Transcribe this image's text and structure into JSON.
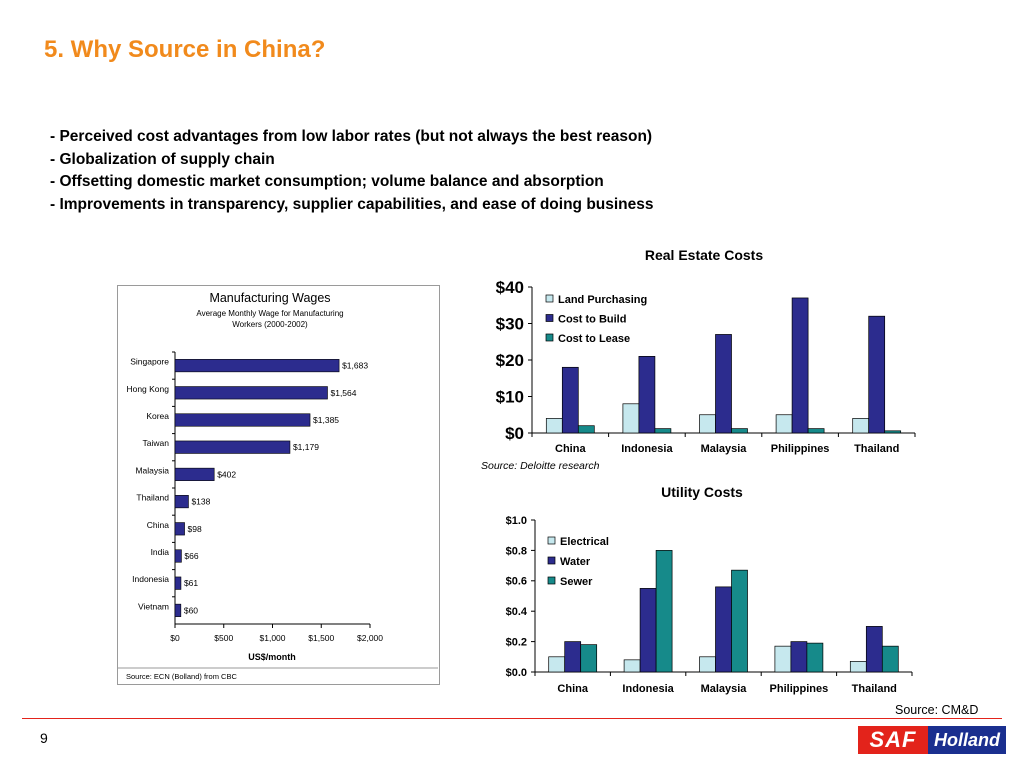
{
  "slide": {
    "title": "5.  Why Source in China?",
    "bullets": [
      "- Perceived cost advantages from low labor rates (but not always the best reason)",
      "- Globalization of supply chain",
      "- Offsetting domestic market consumption; volume balance and absorption",
      "- Improvements in transparency, supplier capabilities, and ease of doing business"
    ],
    "page_number": "9",
    "footer_source": "Source:  CM&D",
    "logo": {
      "saf": "SAF",
      "holland": "Holland"
    }
  },
  "colors": {
    "title_orange": "#f18a1c",
    "rule_red": "#e3231b",
    "light_blue": "#c6e8ee",
    "navy": "#2c2c8e",
    "teal": "#168a8a",
    "logo_blue": "#1a2f8f"
  },
  "chart_data": [
    {
      "id": "wages",
      "type": "bar",
      "orientation": "horizontal",
      "title": "Manufacturing Wages",
      "subtitle": "Average Monthly Wage for Manufacturing Workers (2000-2002)",
      "xlabel": "US$/month",
      "ylabel": "",
      "source": "Source: ECN (Bolland) from CBC",
      "categories": [
        "Singapore",
        "Hong Kong",
        "Korea",
        "Taiwan",
        "Malaysia",
        "Thailand",
        "China",
        "India",
        "Indonesia",
        "Vietnam"
      ],
      "values": [
        1683,
        1564,
        1385,
        1179,
        402,
        138,
        98,
        66,
        61,
        60
      ],
      "value_labels": [
        "$1,683",
        "$1,564",
        "$1,385",
        "$1,179",
        "$402",
        "$138",
        "$98",
        "$66",
        "$61",
        "$60"
      ],
      "xlim": [
        0,
        2000
      ],
      "xticks": [
        0,
        500,
        1000,
        1500,
        2000
      ],
      "xtick_labels": [
        "$0",
        "$500",
        "$1,000",
        "$1,500",
        "$2,000"
      ],
      "grid": false,
      "legend": "none"
    },
    {
      "id": "real_estate",
      "type": "bar",
      "title": "Real Estate Costs",
      "source": "Source: Deloitte research",
      "categories": [
        "China",
        "Indonesia",
        "Malaysia",
        "Philippines",
        "Thailand"
      ],
      "series": [
        {
          "name": "Land Purchasing",
          "values": [
            4,
            8,
            5,
            5,
            4
          ]
        },
        {
          "name": "Cost to Build",
          "values": [
            18,
            21,
            27,
            37,
            32
          ]
        },
        {
          "name": "Cost to Lease",
          "values": [
            2,
            1.2,
            1.2,
            1.2,
            0.6
          ]
        }
      ],
      "ylim": [
        0,
        40
      ],
      "yticks": [
        0,
        10,
        20,
        30,
        40
      ],
      "ytick_labels": [
        "$0",
        "$10",
        "$20",
        "$30",
        "$40"
      ],
      "xlabel": "",
      "ylabel": "",
      "grid": false,
      "legend": "top-left"
    },
    {
      "id": "utility",
      "type": "bar",
      "title": "Utility Costs",
      "categories": [
        "China",
        "Indonesia",
        "Malaysia",
        "Philippines",
        "Thailand"
      ],
      "series": [
        {
          "name": "Electrical",
          "values": [
            0.1,
            0.08,
            0.1,
            0.17,
            0.07
          ]
        },
        {
          "name": "Water",
          "values": [
            0.2,
            0.55,
            0.56,
            0.2,
            0.3
          ]
        },
        {
          "name": "Sewer",
          "values": [
            0.18,
            0.8,
            0.67,
            0.19,
            0.17
          ]
        }
      ],
      "ylim": [
        0,
        1.0
      ],
      "yticks": [
        0,
        0.2,
        0.4,
        0.6,
        0.8,
        1.0
      ],
      "ytick_labels": [
        "$0.0",
        "$0.2",
        "$0.4",
        "$0.6",
        "$0.8",
        "$1.0"
      ],
      "xlabel": "",
      "ylabel": "",
      "grid": false,
      "legend": "top-left"
    }
  ]
}
